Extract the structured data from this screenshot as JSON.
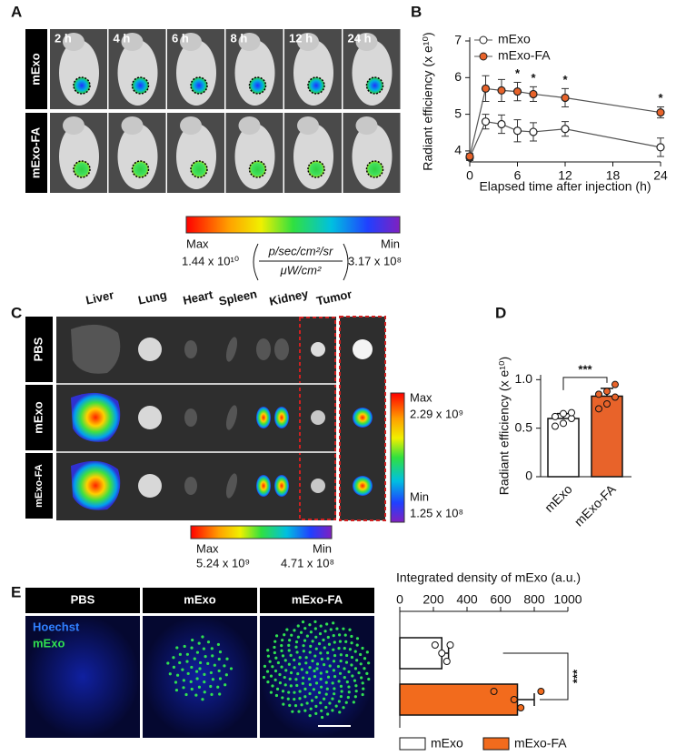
{
  "panel_labels": [
    "A",
    "B",
    "C",
    "D",
    "E"
  ],
  "panel_a": {
    "rows": [
      "mExo",
      "mExo-FA"
    ],
    "times": [
      "2 h",
      "4 h",
      "6 h",
      "8 h",
      "12 h",
      "24 h"
    ],
    "scale": {
      "max": "Max",
      "min": "Min",
      "max_value": "1.44 x 10¹⁰",
      "min_value": "3.17 x 10⁸",
      "unit_top": "p/sec/cm²/sr",
      "unit_bottom": "μW/cm²"
    }
  },
  "panel_c": {
    "organs": [
      "Liver",
      "Lung",
      "Heart",
      "Spleen",
      "Kidney",
      "Tumor"
    ],
    "rows": [
      "PBS",
      "mExo",
      "mExo-FA"
    ],
    "side_scale": {
      "max": "Max",
      "max_value": "2.29 x 10⁹",
      "min": "Min",
      "min_value": "1.25 x 10⁸"
    },
    "bottom_scale": {
      "max": "Max",
      "max_value": "5.24 x 10⁹",
      "min": "Min",
      "min_value": "4.71 x 10⁸"
    }
  },
  "panel_e": {
    "columns": [
      "PBS",
      "mExo",
      "mExo-FA"
    ],
    "stains": [
      "Hoechst",
      "mExo"
    ]
  },
  "chart_data": [
    {
      "type": "line",
      "x_label": "Elapsed time after injection (h)",
      "y_label": "Radiant efficiency (x e¹⁰)",
      "x": [
        0,
        2,
        4,
        6,
        8,
        12,
        24
      ],
      "xlim": [
        0,
        24
      ],
      "xticks": [
        0,
        6,
        12,
        18,
        24
      ],
      "ylim": [
        3.7,
        7
      ],
      "yticks": [
        4,
        5,
        6,
        7
      ],
      "series": [
        {
          "name": "mExo",
          "color": "#ffffff",
          "values": [
            3.82,
            4.8,
            4.73,
            4.55,
            4.52,
            4.6,
            4.1
          ],
          "errors": [
            0.08,
            0.2,
            0.25,
            0.3,
            0.25,
            0.2,
            0.25
          ]
        },
        {
          "name": "mExo-FA",
          "color": "#e8632a",
          "values": [
            3.85,
            5.7,
            5.65,
            5.62,
            5.55,
            5.45,
            5.05
          ],
          "errors": [
            0.08,
            0.35,
            0.3,
            0.25,
            0.2,
            0.25,
            0.15
          ]
        }
      ],
      "annotations": [
        {
          "x": 6,
          "text": "*"
        },
        {
          "x": 8,
          "text": "*"
        },
        {
          "x": 12,
          "text": "*"
        },
        {
          "x": 24,
          "text": "*"
        }
      ]
    },
    {
      "type": "bar",
      "y_label": "Radiant efficiency (x e¹⁰)",
      "categories": [
        "mExo",
        "mExo-FA"
      ],
      "values": [
        0.6,
        0.83
      ],
      "errors": [
        0.05,
        0.08
      ],
      "points": [
        [
          0.52,
          0.55,
          0.6,
          0.62,
          0.65,
          0.66
        ],
        [
          0.7,
          0.75,
          0.82,
          0.85,
          0.88,
          0.95
        ]
      ],
      "colors": [
        "#ffffff",
        "#e8632a"
      ],
      "ylim": [
        0,
        1.05
      ],
      "yticks": [
        0,
        0.5,
        {
          "value": 1,
          "label": "1.0"
        }
      ],
      "annotation": "***"
    },
    {
      "type": "hbar",
      "title": "Integrated density of mExo (a.u.)",
      "categories": [
        "mExo",
        "mExo-FA"
      ],
      "values": [
        250,
        700
      ],
      "errors": [
        40,
        100
      ],
      "points": [
        [
          210,
          250,
          280,
          300
        ],
        [
          560,
          680,
          720,
          840
        ]
      ],
      "colors": [
        "#ffffff",
        "#f26b1d"
      ],
      "xlim": [
        0,
        1000
      ],
      "xticks": [
        0,
        200,
        400,
        600,
        800,
        1000
      ],
      "annotation": "***",
      "legend": "bottom"
    }
  ]
}
